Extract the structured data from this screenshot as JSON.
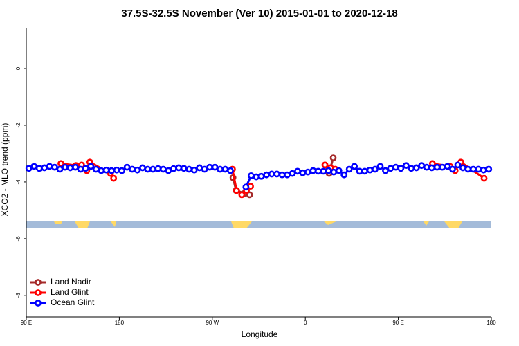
{
  "chart_data": {
    "type": "line",
    "title": "37.5S-32.5S November (Ver 10)   2015-01-01 to 2020-12-18",
    "x_label": "Longitude",
    "y_label": "XCO2 - MLO trend (ppm)",
    "xlim": [
      90,
      540
    ],
    "xticks": [
      {
        "value": 90,
        "label": "90 E"
      },
      180,
      {
        "value": 270,
        "label": "90 W"
      },
      {
        "value": 360,
        "label": "0"
      },
      {
        "value": 450,
        "label": "90 E"
      },
      {
        "value": 540,
        "label": "180"
      }
    ],
    "ylim": [
      -8.76,
      1.44
    ],
    "yticks": [
      0,
      -2,
      -4,
      -6,
      -8
    ],
    "legend": "bottom-left",
    "series": [
      {
        "name": "Land Nadir",
        "color": "#a52a2a",
        "x": [
          290,
          293,
          301,
          306,
          330,
          379,
          383,
          387
        ],
        "values": [
          -3.85,
          -4.3,
          -4.4,
          -4.45,
          null,
          -3.4,
          -3.7,
          -3.15
        ]
      },
      {
        "name": "Land Glint",
        "color": "#ff0000",
        "x": [
          123.5,
          138,
          143.5,
          148.5,
          151.5,
          171.5,
          174.5,
          230,
          289.5,
          293.5,
          298.5,
          303,
          307,
          340,
          379,
          384.5,
          389,
          440,
          483,
          500,
          505,
          510.5,
          533
        ],
        "values": [
          -3.35,
          -3.42,
          -3.4,
          -3.6,
          -3.3,
          -3.7,
          -3.87,
          null,
          -3.55,
          -4.3,
          -4.45,
          -4.3,
          -4.15,
          null,
          -3.4,
          -3.5,
          -3.55,
          null,
          -3.35,
          -3.45,
          -3.6,
          -3.3,
          -3.87
        ]
      },
      {
        "name": "Ocean Glint",
        "color": "#0000ff",
        "x": [
          92.5,
          97.5,
          102.5,
          107.5,
          112.5,
          117.5,
          122.5,
          127.5,
          132.5,
          137.5,
          142.5,
          147.5,
          152.5,
          157.5,
          162.5,
          167.5,
          172.5,
          177.5,
          182.5,
          187.5,
          192.5,
          197.5,
          202.5,
          207.5,
          212.5,
          217.5,
          222.5,
          227.5,
          232.5,
          237.5,
          242.5,
          247.5,
          252.5,
          257.5,
          262.5,
          267.5,
          272.5,
          277.5,
          282.5,
          287.5,
          292.5,
          297.5,
          302.5,
          307.5,
          312.5,
          317.5,
          322.5,
          327.5,
          332.5,
          337.5,
          342.5,
          347.5,
          352.5,
          357.5,
          362.5,
          367.5,
          372.5,
          377.5,
          382.5,
          387.5,
          392.5,
          397.5,
          402.5,
          407.5,
          412.5,
          417.5,
          422.5,
          427.5,
          432.5,
          437.5,
          442.5,
          447.5,
          452.5,
          457.5,
          462.5,
          467.5,
          472.5,
          477.5,
          482.5,
          487.5,
          492.5,
          497.5,
          502.5,
          507.5,
          512.5,
          517.5,
          522.5,
          527.5,
          532.5,
          537.5
        ],
        "values": [
          -3.52,
          -3.45,
          -3.52,
          -3.5,
          -3.45,
          -3.48,
          -3.55,
          -3.48,
          -3.5,
          -3.48,
          -3.55,
          -3.52,
          -3.45,
          -3.55,
          -3.6,
          -3.58,
          -3.6,
          -3.58,
          -3.6,
          -3.48,
          -3.55,
          -3.58,
          -3.5,
          -3.55,
          -3.55,
          -3.53,
          -3.55,
          -3.6,
          -3.53,
          -3.5,
          -3.52,
          -3.55,
          -3.58,
          -3.5,
          -3.55,
          -3.48,
          -3.48,
          -3.55,
          -3.55,
          -3.6,
          null,
          null,
          -4.18,
          -3.78,
          -3.82,
          -3.8,
          -3.75,
          -3.72,
          -3.72,
          -3.75,
          -3.75,
          -3.7,
          -3.62,
          -3.68,
          -3.65,
          -3.6,
          -3.62,
          -3.62,
          -3.6,
          -3.65,
          -3.6,
          -3.75,
          -3.55,
          -3.45,
          -3.62,
          -3.62,
          -3.58,
          -3.55,
          -3.45,
          -3.6,
          -3.52,
          -3.48,
          -3.52,
          -3.42,
          -3.52,
          -3.5,
          -3.42,
          -3.48,
          -3.5,
          -3.48,
          -3.48,
          -3.45,
          -3.55,
          -3.4,
          -3.5,
          -3.55,
          -3.55,
          -3.55,
          -3.58,
          -3.55
        ]
      }
    ]
  }
}
